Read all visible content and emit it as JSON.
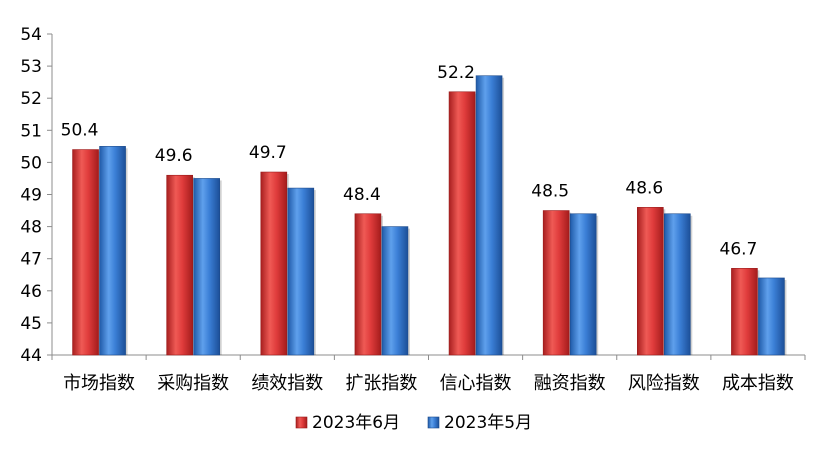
{
  "chart_data": {
    "type": "bar",
    "categories": [
      "市场指数",
      "采购指数",
      "绩效指数",
      "扩张指数",
      "信心指数",
      "融资指数",
      "风险指数",
      "成本指数"
    ],
    "series": [
      {
        "name": "2023年6月",
        "values": [
          50.4,
          49.6,
          49.7,
          48.4,
          52.2,
          48.5,
          48.6,
          46.7
        ],
        "color": "#e03c3c",
        "show_labels": true
      },
      {
        "name": "2023年5月",
        "values": [
          50.5,
          49.5,
          49.2,
          48.0,
          52.7,
          48.4,
          48.4,
          46.4
        ],
        "color": "#3b7fd6",
        "show_labels": false
      }
    ],
    "ylim": [
      44,
      54
    ],
    "yticks": [
      44,
      45,
      46,
      47,
      48,
      49,
      50,
      51,
      52,
      53,
      54
    ],
    "grid": false,
    "legend": "bottom"
  }
}
